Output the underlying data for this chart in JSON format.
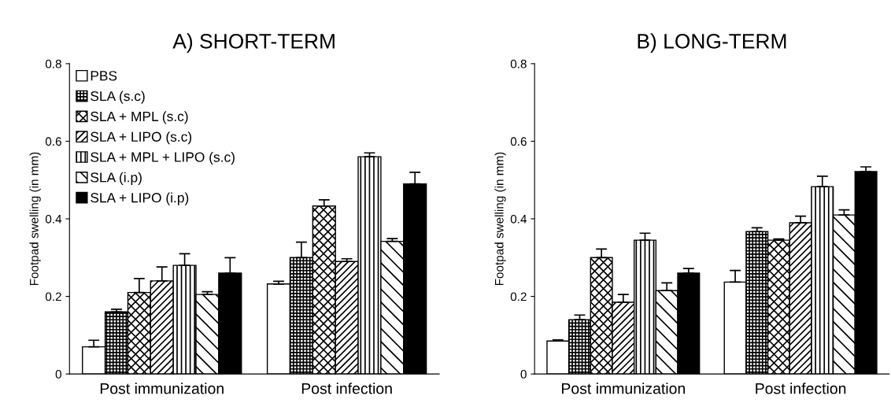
{
  "chart_data": [
    {
      "type": "bar",
      "title": "A) SHORT-TERM",
      "ylabel": "Footpad swelling (in mm)",
      "categories": [
        "Post immunization",
        "Post infection"
      ],
      "ylim": [
        0,
        0.8
      ],
      "yticks": [
        0,
        0.2,
        0.4,
        0.6,
        0.8
      ],
      "grid": false,
      "legend": "top left",
      "series": [
        {
          "name": "PBS",
          "color": "#ffffff",
          "values": [
            0.07,
            0.232
          ],
          "errors": [
            [
              0.07,
              0.087
            ],
            [
              0.232,
              0.239
            ]
          ]
        },
        {
          "name": "SLA (s.c)",
          "color": "#000000",
          "values": [
            0.16,
            0.3
          ],
          "errors": [
            [
              0.16,
              0.167
            ],
            [
              0.3,
              0.34
            ]
          ]
        },
        {
          "name": "SLA + MPL (s.c)",
          "color": "#000000",
          "values": [
            0.21,
            0.433
          ],
          "errors": [
            [
              0.21,
              0.246
            ],
            [
              0.433,
              0.449
            ]
          ]
        },
        {
          "name": "SLA + LIPO (s.c)",
          "color": "#000000",
          "values": [
            0.24,
            0.29
          ],
          "errors": [
            [
              0.24,
              0.276
            ],
            [
              0.29,
              0.297
            ]
          ]
        },
        {
          "name": "SLA + MPL + LIPO (s.c)",
          "color": "#000000",
          "values": [
            0.28,
            0.56
          ],
          "errors": [
            [
              0.28,
              0.31
            ],
            [
              0.56,
              0.57
            ]
          ]
        },
        {
          "name": "SLA (i.p)",
          "color": "#000000",
          "values": [
            0.205,
            0.342
          ],
          "errors": [
            [
              0.205,
              0.212
            ],
            [
              0.342,
              0.349
            ]
          ]
        },
        {
          "name": "SLA + LIPO (i.p)",
          "color": "#000000",
          "values": [
            0.26,
            0.49
          ],
          "errors": [
            [
              0.26,
              0.3
            ],
            [
              0.49,
              0.52
            ]
          ]
        }
      ]
    },
    {
      "type": "bar",
      "title": "B) LONG-TERM",
      "ylabel": "Footpad swelling (in mm)",
      "categories": [
        "Post immunization",
        "Post infection"
      ],
      "ylim": [
        0,
        0.8
      ],
      "yticks": [
        0,
        0.2,
        0.4,
        0.6,
        0.8
      ],
      "grid": false,
      "legend": false,
      "series": [
        {
          "color": "#ffffff",
          "values": [
            0.085,
            0.237
          ],
          "errors": [
            [
              0.085,
              0.088
            ],
            [
              0.237,
              0.267
            ]
          ]
        },
        {
          "color": "#000000",
          "values": [
            0.14,
            0.367
          ],
          "errors": [
            [
              0.14,
              0.152
            ],
            [
              0.367,
              0.377
            ]
          ]
        },
        {
          "color": "#000000",
          "values": [
            0.3,
            0.345
          ],
          "errors": [
            [
              0.3,
              0.322
            ],
            [
              0.345,
              0.348
            ]
          ]
        },
        {
          "color": "#000000",
          "values": [
            0.185,
            0.39
          ],
          "errors": [
            [
              0.185,
              0.205
            ],
            [
              0.39,
              0.407
            ]
          ]
        },
        {
          "color": "#000000",
          "values": [
            0.345,
            0.483
          ],
          "errors": [
            [
              0.345,
              0.363
            ],
            [
              0.483,
              0.51
            ]
          ]
        },
        {
          "color": "#000000",
          "values": [
            0.215,
            0.41
          ],
          "errors": [
            [
              0.215,
              0.235
            ],
            [
              0.41,
              0.423
            ]
          ]
        },
        {
          "color": "#000000",
          "values": [
            0.26,
            0.522
          ],
          "errors": [
            [
              0.26,
              0.272
            ],
            [
              0.522,
              0.534
            ]
          ]
        }
      ]
    }
  ]
}
